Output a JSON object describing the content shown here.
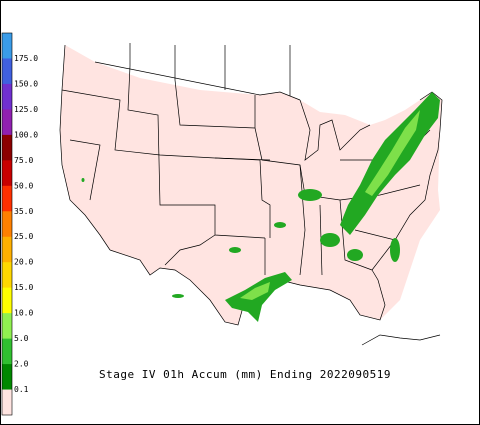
{
  "legend": {
    "colors": [
      "#3a9ce8",
      "#4060e0",
      "#7030d0",
      "#9020b0",
      "#8b0000",
      "#c80000",
      "#ff3000",
      "#ff8000",
      "#ffb000",
      "#ffd800",
      "#ffff00",
      "#90f050",
      "#30c030",
      "#008800",
      "#ffe4e1"
    ],
    "labels": [
      "175.0",
      "150.0",
      "125.0",
      "100.0",
      "75.0",
      "50.0",
      "35.0",
      "25.0",
      "20.0",
      "15.0",
      "10.0",
      "5.0",
      "2.0",
      "0.1"
    ]
  },
  "caption": "Stage IV 01h Accum (mm) Ending 2022090519"
}
